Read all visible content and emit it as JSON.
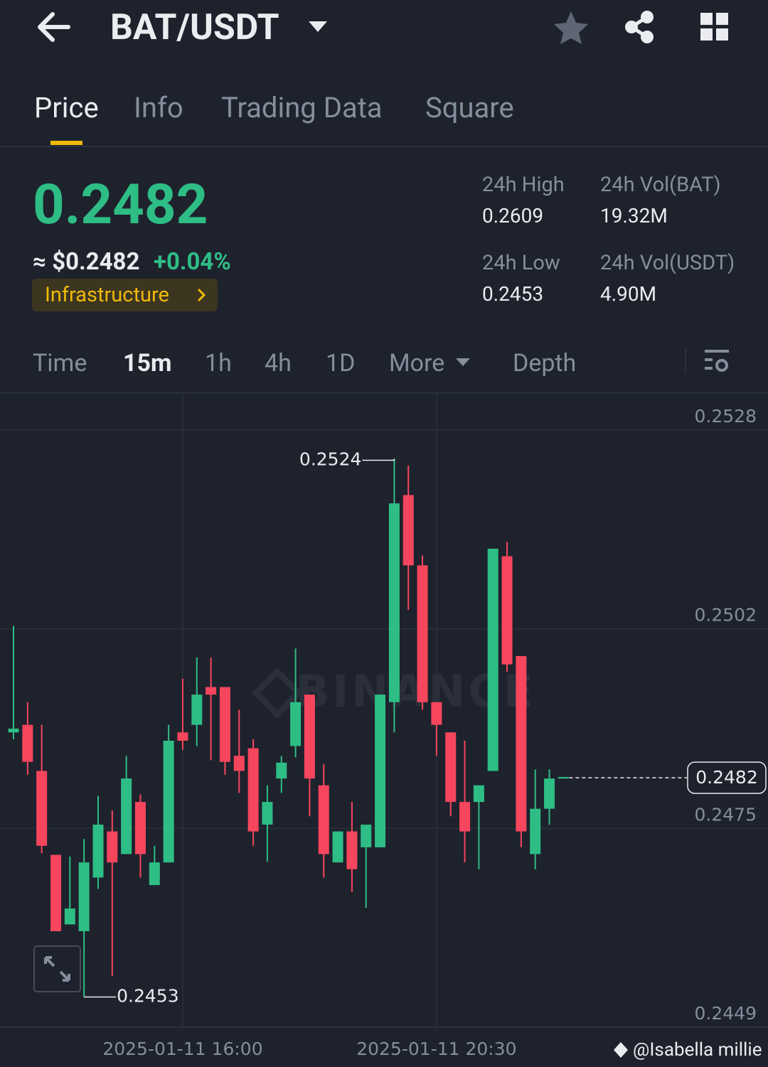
{
  "header": {
    "pair": "BAT/USDT"
  },
  "tabs": [
    "Price",
    "Info",
    "Trading Data",
    "Square"
  ],
  "ticker": {
    "price": "0.2482",
    "fiat": "≈ $0.2482",
    "change": "+0.04%",
    "tag": "Infrastructure",
    "stats": [
      {
        "label": "24h High",
        "value": "0.2609"
      },
      {
        "label": "24h Vol(BAT)",
        "value": "19.32M"
      },
      {
        "label": "24h Low",
        "value": "0.2453"
      },
      {
        "label": "24h Vol(USDT)",
        "value": "4.90M"
      }
    ]
  },
  "intervals": [
    "Time",
    "15m",
    "1h",
    "4h",
    "1D",
    "More",
    "Depth"
  ],
  "footer": "@Isabella millie",
  "chart_data": {
    "type": "candlestick",
    "watermark": "BINANCE",
    "categories": [
      null,
      null,
      null,
      null,
      null,
      null,
      null,
      null,
      null,
      null,
      null,
      null,
      "2025-01-11 16:00",
      null,
      null,
      null,
      null,
      null,
      null,
      null,
      null,
      null,
      null,
      null,
      null,
      null,
      null,
      null,
      null,
      null,
      "2025-01-11 20:30",
      null,
      null,
      null,
      null,
      null,
      null,
      null,
      null,
      null
    ],
    "open": [
      0.2488,
      0.2489,
      0.24829,
      0.24718,
      0.24626,
      0.24617,
      0.24688,
      0.24749,
      0.24719,
      0.24788,
      0.24678,
      0.24708,
      0.2488,
      0.2489,
      0.2494,
      0.2494,
      0.24849,
      0.24859,
      0.24758,
      0.24819,
      0.24862,
      0.2493,
      0.2481,
      0.24708,
      0.24749,
      0.24728,
      0.24728,
      0.2492,
      0.25194,
      0.25101,
      0.2492,
      0.2488,
      0.24788,
      0.24788,
      0.24829,
      0.25113,
      0.24981,
      0.24719,
      0.24779,
      0.24819
    ],
    "high": [
      0.25021,
      0.2492,
      0.2489,
      0.24718,
      0.24716,
      0.24739,
      0.24796,
      0.24777,
      0.24849,
      0.24798,
      0.2473,
      0.2489,
      0.24951,
      0.24979,
      0.24979,
      0.2494,
      0.2491,
      0.24871,
      0.2481,
      0.24849,
      0.24991,
      0.2493,
      0.24838,
      0.24749,
      0.24788,
      0.24758,
      0.2493,
      0.25242,
      0.25233,
      0.25114,
      0.2492,
      0.2488,
      0.24869,
      0.2481,
      0.25123,
      0.25132,
      0.24981,
      0.24831,
      0.24831,
      0.24821
    ],
    "low": [
      0.24871,
      0.24824,
      0.2472,
      0.24617,
      0.24626,
      0.2453,
      0.24673,
      0.24558,
      0.24719,
      0.24688,
      0.24678,
      0.24708,
      0.24857,
      0.24862,
      0.24843,
      0.24824,
      0.248,
      0.2473,
      0.24709,
      0.248,
      0.24847,
      0.24769,
      0.24688,
      0.24708,
      0.24669,
      0.24648,
      0.24728,
      0.2488,
      0.25042,
      0.2491,
      0.24849,
      0.24769,
      0.24708,
      0.24699,
      0.24829,
      0.2496,
      0.24728,
      0.24699,
      0.24758,
      0.24819
    ],
    "close": [
      0.24885,
      0.24841,
      0.2473,
      0.24617,
      0.24647,
      0.24708,
      0.24758,
      0.24708,
      0.24819,
      0.24719,
      0.24708,
      0.24869,
      0.24869,
      0.2493,
      0.2493,
      0.24841,
      0.24829,
      0.24749,
      0.24788,
      0.2484,
      0.2492,
      0.24819,
      0.24719,
      0.24749,
      0.24699,
      0.24758,
      0.2493,
      0.25183,
      0.25101,
      0.2492,
      0.2489,
      0.24788,
      0.24749,
      0.2481,
      0.25123,
      0.2497,
      0.24749,
      0.24779,
      0.24819,
      0.24821
    ],
    "up_color": "#2ebd85",
    "down_color": "#f6465d",
    "ylim": [
      0.2449,
      0.25327
    ],
    "yticks": [
      {
        "value": 0.2449,
        "label": "0.2449"
      },
      {
        "value": 0.24753,
        "label": "0.2475"
      },
      {
        "value": 0.25017,
        "label": "0.2502"
      },
      0.2528
    ],
    "last_price": 0.2482,
    "high_label": 0.2524,
    "low_label": 0.2453,
    "grid": true
  }
}
